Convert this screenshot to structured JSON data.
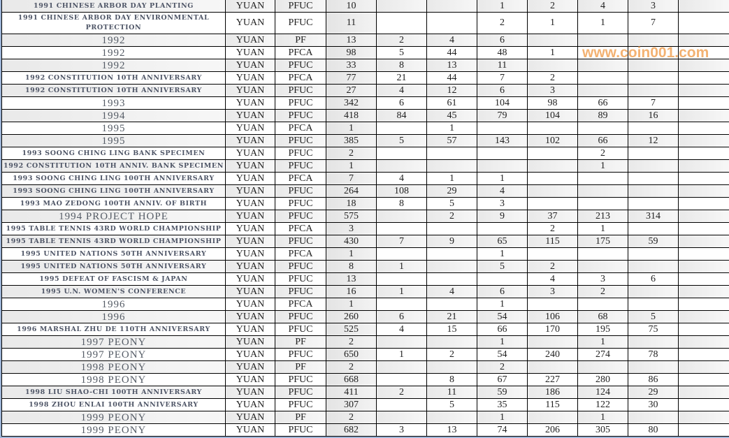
{
  "watermark": "www.coin001.com",
  "rows": [
    {
      "name": "1991 CHINESE ARBOR DAY PLANTING",
      "den": "YUAN",
      "grade": "PFUC",
      "total": "10",
      "cols": [
        "",
        "",
        "1",
        "2",
        "4",
        "3",
        ""
      ]
    },
    {
      "name": "1991 CHINESE ARBOR DAY ENVIRONMENTAL PROTECTION",
      "den": "YUAN",
      "grade": "PFUC",
      "total": "11",
      "cols": [
        "",
        "",
        "2",
        "1",
        "1",
        "7",
        ""
      ]
    },
    {
      "name": "1992",
      "den": "YUAN",
      "grade": "PF",
      "total": "13",
      "cols": [
        "2",
        "4",
        "6",
        "",
        "",
        "",
        ""
      ]
    },
    {
      "name": "1992",
      "den": "YUAN",
      "grade": "PFCA",
      "total": "98",
      "cols": [
        "5",
        "44",
        "48",
        "1",
        "",
        "",
        ""
      ]
    },
    {
      "name": "1992",
      "den": "YUAN",
      "grade": "PFUC",
      "total": "33",
      "cols": [
        "8",
        "13",
        "11",
        "",
        "",
        "",
        ""
      ]
    },
    {
      "name": "1992 CONSTITUTION 10TH ANNIVERSARY",
      "den": "YUAN",
      "grade": "PFCA",
      "total": "77",
      "cols": [
        "21",
        "44",
        "7",
        "2",
        "",
        "",
        ""
      ]
    },
    {
      "name": "1992 CONSTITUTION 10TH ANNIVERSARY",
      "den": "YUAN",
      "grade": "PFUC",
      "total": "27",
      "cols": [
        "4",
        "12",
        "6",
        "3",
        "",
        "",
        ""
      ]
    },
    {
      "name": "1993",
      "den": "YUAN",
      "grade": "PFUC",
      "total": "342",
      "cols": [
        "6",
        "61",
        "104",
        "98",
        "66",
        "7",
        ""
      ]
    },
    {
      "name": "1994",
      "den": "YUAN",
      "grade": "PFUC",
      "total": "418",
      "cols": [
        "84",
        "45",
        "79",
        "104",
        "89",
        "16",
        ""
      ]
    },
    {
      "name": "1995",
      "den": "YUAN",
      "grade": "PFCA",
      "total": "1",
      "cols": [
        "",
        "1",
        "",
        "",
        "",
        "",
        ""
      ]
    },
    {
      "name": "1995",
      "den": "YUAN",
      "grade": "PFUC",
      "total": "385",
      "cols": [
        "5",
        "57",
        "143",
        "102",
        "66",
        "12",
        ""
      ]
    },
    {
      "name": "1993 SOONG CHING LING BANK SPECIMEN",
      "den": "YUAN",
      "grade": "PFUC",
      "total": "2",
      "cols": [
        "",
        "",
        "",
        "",
        "2",
        "",
        ""
      ]
    },
    {
      "name": "1992 CONSTITUTION 10TH ANNIV. BANK SPECIMEN",
      "den": "YUAN",
      "grade": "PFUC",
      "total": "1",
      "cols": [
        "",
        "",
        "",
        "",
        "1",
        "",
        ""
      ]
    },
    {
      "name": "1993 SOONG CHING LING 100TH ANNIVERSARY",
      "den": "YUAN",
      "grade": "PFCA",
      "total": "7",
      "cols": [
        "4",
        "1",
        "1",
        "",
        "",
        "",
        ""
      ]
    },
    {
      "name": "1993 SOONG CHING LING 100TH ANNIVERSARY",
      "den": "YUAN",
      "grade": "PFUC",
      "total": "264",
      "cols": [
        "108",
        "29",
        "4",
        "",
        "",
        "",
        ""
      ]
    },
    {
      "name": "1993 MAO ZEDONG 100TH ANNIV. OF BIRTH",
      "den": "YUAN",
      "grade": "PFUC",
      "total": "18",
      "cols": [
        "8",
        "5",
        "3",
        "",
        "",
        "",
        ""
      ]
    },
    {
      "name": "1994 PROJECT HOPE",
      "den": "YUAN",
      "grade": "PFUC",
      "total": "575",
      "cols": [
        "",
        "2",
        "9",
        "37",
        "213",
        "314",
        ""
      ]
    },
    {
      "name": "1995 TABLE TENNIS 43RD WORLD CHAMPIONSHIP",
      "den": "YUAN",
      "grade": "PFCA",
      "total": "3",
      "cols": [
        "",
        "",
        "",
        "2",
        "1",
        "",
        ""
      ]
    },
    {
      "name": "1995 TABLE TENNIS 43RD WORLD CHAMPIONSHIP",
      "den": "YUAN",
      "grade": "PFUC",
      "total": "430",
      "cols": [
        "7",
        "9",
        "65",
        "115",
        "175",
        "59",
        ""
      ]
    },
    {
      "name": "1995 UNITED NATIONS 50TH ANNIVERSARY",
      "den": "YUAN",
      "grade": "PFCA",
      "total": "1",
      "cols": [
        "",
        "",
        "1",
        "",
        "",
        "",
        ""
      ]
    },
    {
      "name": "1995 UNITED NATIONS 50TH ANNIVERSARY",
      "den": "YUAN",
      "grade": "PFUC",
      "total": "8",
      "cols": [
        "1",
        "",
        "5",
        "2",
        "",
        "",
        ""
      ]
    },
    {
      "name": "1995 DEFEAT OF FASCISM & JAPAN",
      "den": "YUAN",
      "grade": "PFUC",
      "total": "13",
      "cols": [
        "",
        "",
        "",
        "4",
        "3",
        "6",
        ""
      ]
    },
    {
      "name": "1995 U.N. WOMEN'S CONFERENCE",
      "den": "YUAN",
      "grade": "PFUC",
      "total": "16",
      "cols": [
        "1",
        "4",
        "6",
        "3",
        "2",
        "",
        ""
      ]
    },
    {
      "name": "1996",
      "den": "YUAN",
      "grade": "PFCA",
      "total": "1",
      "cols": [
        "",
        "",
        "1",
        "",
        "",
        "",
        ""
      ]
    },
    {
      "name": "1996",
      "den": "YUAN",
      "grade": "PFUC",
      "total": "260",
      "cols": [
        "6",
        "21",
        "54",
        "106",
        "68",
        "5",
        ""
      ]
    },
    {
      "name": "1996 MARSHAL ZHU DE 110TH ANNIVERSARY",
      "den": "YUAN",
      "grade": "PFUC",
      "total": "525",
      "cols": [
        "4",
        "15",
        "66",
        "170",
        "195",
        "75",
        ""
      ]
    },
    {
      "name": "1997 PEONY",
      "den": "YUAN",
      "grade": "PF",
      "total": "2",
      "cols": [
        "",
        "",
        "1",
        "",
        "1",
        "",
        ""
      ]
    },
    {
      "name": "1997 PEONY",
      "den": "YUAN",
      "grade": "PFUC",
      "total": "650",
      "cols": [
        "1",
        "2",
        "54",
        "240",
        "274",
        "78",
        ""
      ]
    },
    {
      "name": "1998 PEONY",
      "den": "YUAN",
      "grade": "PF",
      "total": "2",
      "cols": [
        "",
        "",
        "2",
        "",
        "",
        "",
        ""
      ]
    },
    {
      "name": "1998 PEONY",
      "den": "YUAN",
      "grade": "PFUC",
      "total": "668",
      "cols": [
        "",
        "8",
        "67",
        "227",
        "280",
        "86",
        ""
      ]
    },
    {
      "name": "1998 LIU SHAO-CHI 100TH ANNIVERSARY",
      "den": "YUAN",
      "grade": "PFUC",
      "total": "411",
      "cols": [
        "2",
        "11",
        "59",
        "186",
        "124",
        "29",
        ""
      ]
    },
    {
      "name": "1998 ZHOU ENLAI 100TH ANNIVERSARY",
      "den": "YUAN",
      "grade": "PFUC",
      "total": "307",
      "cols": [
        "",
        "5",
        "35",
        "115",
        "122",
        "30",
        ""
      ]
    },
    {
      "name": "1999 PEONY",
      "den": "YUAN",
      "grade": "PF",
      "total": "2",
      "cols": [
        "",
        "",
        "1",
        "",
        "1",
        "",
        ""
      ]
    },
    {
      "name": "1999 PEONY",
      "den": "YUAN",
      "grade": "PFUC",
      "total": "682",
      "cols": [
        "3",
        "13",
        "74",
        "206",
        "305",
        "80",
        ""
      ]
    }
  ]
}
